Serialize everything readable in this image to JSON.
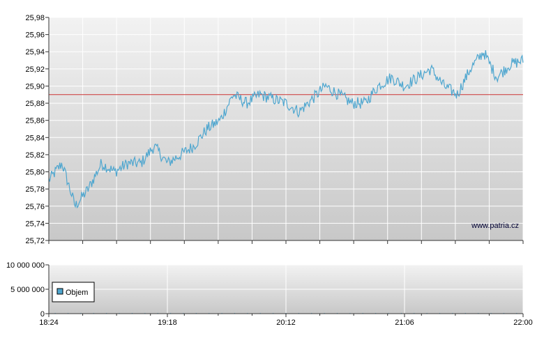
{
  "chart_data": [
    {
      "type": "line",
      "name": "price",
      "watermark": "www.patria.cz",
      "ylim": [
        25.72,
        25.98
      ],
      "y_ticks": [
        "25,98",
        "25,96",
        "25,94",
        "25,92",
        "25,90",
        "25,88",
        "25,86",
        "25,84",
        "25,82",
        "25,80",
        "25,78",
        "25,76",
        "25,74",
        "25,72"
      ],
      "reference_line": {
        "value": 25.89,
        "color": "#cc3333"
      },
      "line_color": "#4ea6cf",
      "x": [
        "18:24",
        "18:30",
        "18:36",
        "18:42",
        "18:48",
        "18:54",
        "19:00",
        "19:06",
        "19:12",
        "19:18",
        "19:24",
        "19:30",
        "19:36",
        "19:42",
        "19:48",
        "19:54",
        "20:00",
        "20:06",
        "20:12",
        "20:18",
        "20:24",
        "20:30",
        "20:36",
        "20:42",
        "20:48",
        "20:54",
        "21:00",
        "21:06",
        "21:12",
        "21:18",
        "21:24",
        "21:30",
        "21:36",
        "21:42",
        "21:48",
        "21:54",
        "22:00"
      ],
      "values": [
        25.79,
        25.81,
        25.76,
        25.78,
        25.81,
        25.8,
        25.81,
        25.81,
        25.83,
        25.81,
        25.82,
        25.83,
        25.85,
        25.86,
        25.89,
        25.88,
        25.89,
        25.885,
        25.88,
        25.87,
        25.885,
        25.9,
        25.89,
        25.88,
        25.88,
        25.9,
        25.91,
        25.9,
        25.91,
        25.92,
        25.9,
        25.89,
        25.92,
        25.94,
        25.91,
        25.925,
        25.93
      ]
    },
    {
      "type": "bar",
      "name": "volume",
      "ylim": [
        0,
        10000000
      ],
      "y_ticks": [
        "10 000 000",
        "5 000 000",
        "0"
      ],
      "x_ticks": [
        "18:24",
        "19:18",
        "20:12",
        "21:06",
        "22:00"
      ],
      "legend": {
        "label": "Objem",
        "color": "#4ea6cf",
        "placement": "top-left"
      },
      "values": [
        0,
        0,
        0,
        0,
        0,
        0,
        0,
        0,
        0,
        0,
        0,
        0,
        0,
        0,
        0,
        0,
        0,
        0,
        0,
        0,
        0,
        0,
        0,
        0,
        0,
        0,
        0,
        0,
        0,
        0,
        0,
        0,
        0,
        0,
        0,
        0,
        0
      ]
    }
  ]
}
